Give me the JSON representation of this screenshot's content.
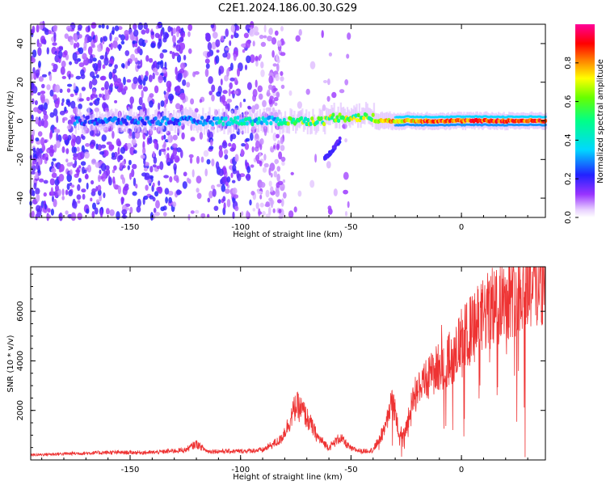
{
  "title": "C2E1.2024.186.00.30.G29",
  "chart_data": [
    {
      "type": "heatmap",
      "xlabel": "Height of straight line (km)",
      "ylabel": "Frequency (Hz)",
      "xlim": [
        -195,
        38
      ],
      "ylim": [
        -50,
        50
      ],
      "xticks": [
        -150,
        -100,
        -50,
        0
      ],
      "yticks": [
        -40,
        -20,
        0,
        20,
        40
      ],
      "colorbar": {
        "label": "Normalized spectral amplitude",
        "range": [
          0,
          1
        ],
        "ticks": [
          0.0,
          0.2,
          0.4,
          0.6,
          0.8
        ],
        "colormap": "rainbow (white-violet-blue-cyan-green-yellow-red-magenta)"
      },
      "features": {
        "noise_region_x": [
          -195,
          -80
        ],
        "signal_band_center_hz": 0,
        "signal_band_halfwidth_hz": 3,
        "secondary_arc": {
          "x": [
            -62,
            -55
          ],
          "y": [
            -20,
            -10
          ]
        }
      }
    },
    {
      "type": "line",
      "xlabel": "Height of straight line (km)",
      "ylabel": "SNR (10 * v/v)",
      "xlim": [
        -195,
        38
      ],
      "ylim": [
        0,
        7800
      ],
      "xticks": [
        -150,
        -100,
        -50,
        0
      ],
      "yticks": [
        2000,
        4000,
        6000
      ],
      "color": "#ee3333",
      "series": [
        {
          "envelope": {
            "x": [
              -195,
              -180,
              -160,
              -140,
              -125,
              -120,
              -115,
              -100,
              -90,
              -82,
              -78,
              -75,
              -72,
              -70,
              -68,
              -65,
              -60,
              -55,
              -50,
              -45,
              -40,
              -35,
              -32,
              -30,
              -28,
              -25,
              -22,
              -20,
              -15,
              -10,
              -5,
              0,
              5,
              10,
              15,
              20,
              25,
              30,
              38
            ],
            "y": [
              200,
              250,
              300,
              300,
              400,
              650,
              350,
              350,
              400,
              800,
              1500,
              2200,
              2000,
              1700,
              1400,
              900,
              500,
              900,
              450,
              350,
              400,
              1200,
              2300,
              2000,
              1000,
              1300,
              2600,
              2800,
              3300,
              3800,
              4100,
              4800,
              5300,
              5800,
              6200,
              6600,
              6900,
              7200,
              7400
            ]
          }
        }
      ]
    }
  ]
}
